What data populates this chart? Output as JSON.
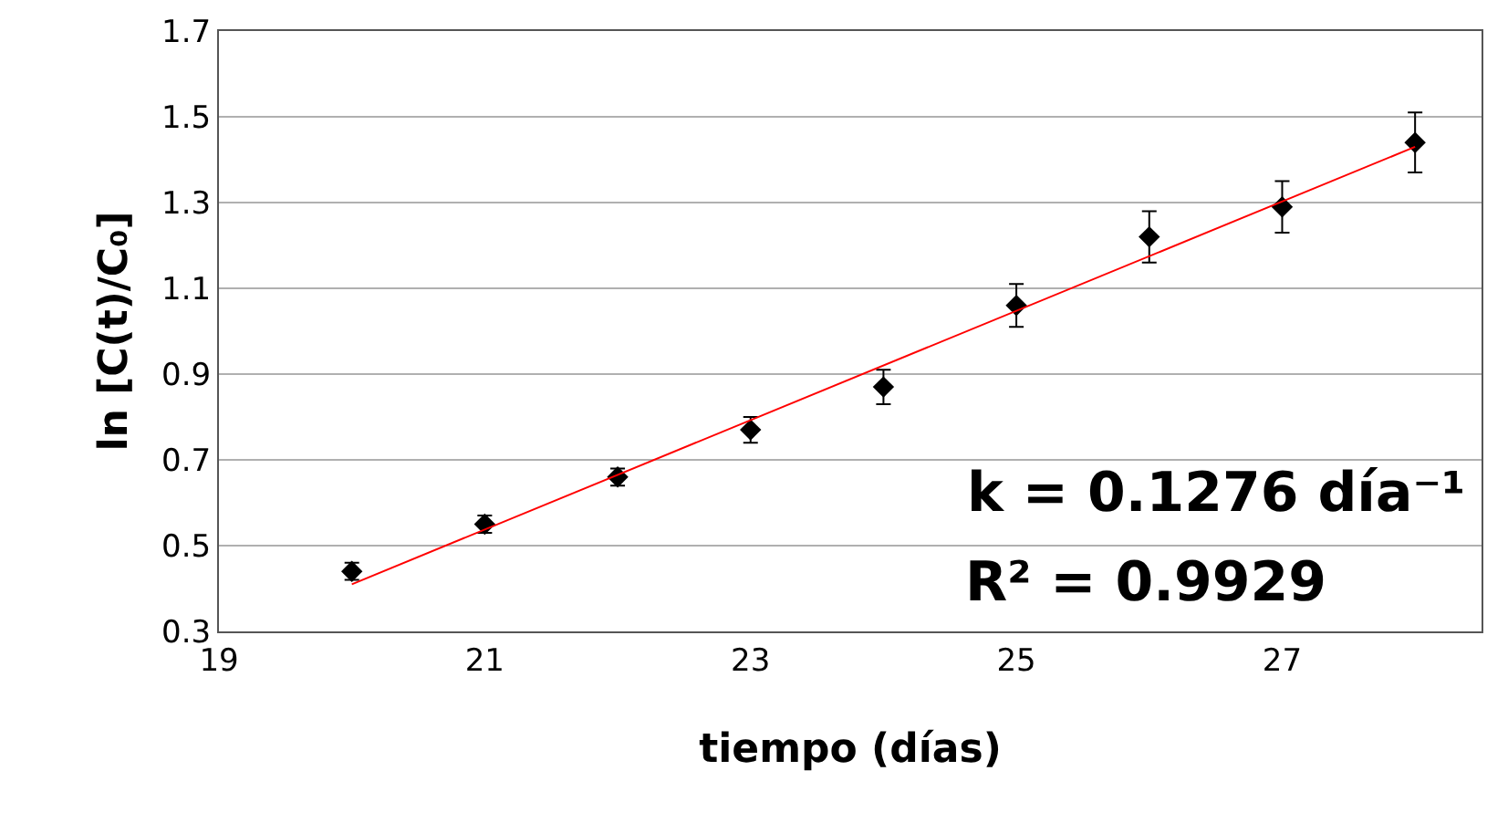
{
  "chart_data": {
    "type": "scatter",
    "xlabel": "tiempo (días)",
    "ylabel": "ln [C(t)/C₀]",
    "x": [
      20,
      21,
      22,
      23,
      24,
      25,
      26,
      27,
      28
    ],
    "series": [
      {
        "color": "#000000",
        "values": [
          0.44,
          0.55,
          0.66,
          0.77,
          0.87,
          1.06,
          1.22,
          1.29,
          1.44
        ],
        "errors": [
          0.02,
          0.02,
          0.02,
          0.03,
          0.04,
          0.05,
          0.06,
          0.06,
          0.07
        ],
        "marker": "diamond"
      },
      {
        "type": "line",
        "color": "#ff0000",
        "x": [
          20,
          28
        ],
        "values": [
          0.41,
          1.43
        ],
        "marker": "none",
        "line_style": "solid"
      }
    ],
    "annotations": [
      "k = 0.1276 día⁻¹",
      "R² = 0.9929"
    ],
    "xlim": [
      19,
      28.5
    ],
    "xticks": [
      19,
      21,
      23,
      25,
      27
    ],
    "ylim": [
      0.3,
      1.7
    ],
    "yticks": [
      0.3,
      0.5,
      0.7,
      0.9,
      1.1,
      1.3,
      1.5,
      1.7
    ],
    "grid": "y"
  }
}
